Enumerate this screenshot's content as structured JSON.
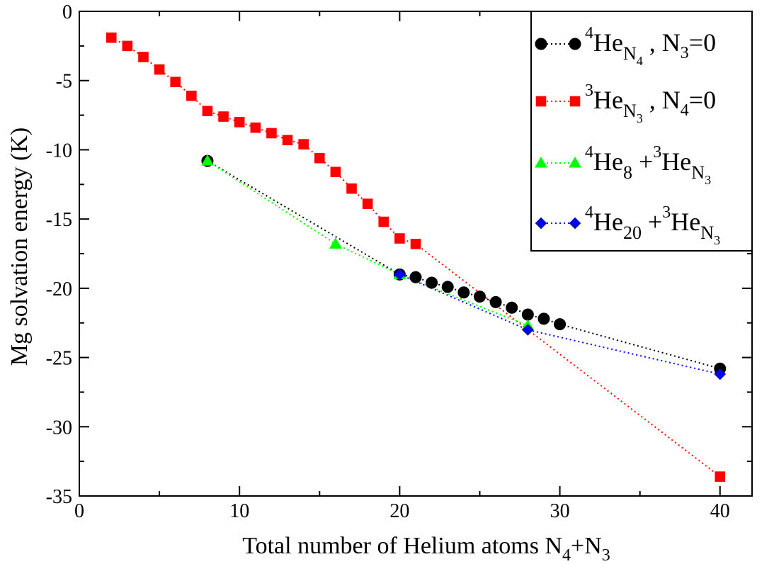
{
  "chart_data": {
    "type": "scatter",
    "title": "",
    "xlabel": {
      "main": "Total number of Helium atoms N",
      "sub1": "4",
      "plus": "+N",
      "sub2": "3"
    },
    "ylabel": "Mg solvation energy (K)",
    "xlim": [
      0,
      42
    ],
    "ylim": [
      -35,
      0
    ],
    "x_ticks": [
      0,
      10,
      20,
      30,
      40
    ],
    "y_ticks": [
      0,
      -5,
      -10,
      -15,
      -20,
      -25,
      -30,
      -35
    ],
    "grid": false,
    "legend_position": "top-right",
    "series": [
      {
        "legend": {
          "sup": "4",
          "base": "He",
          "sub": "N",
          "subsub": "4",
          "rest": ", N",
          "rest_sub": "3",
          "rest_tail": "=0"
        },
        "color": "#000000",
        "marker": "circle",
        "x": [
          8,
          20,
          21,
          22,
          23,
          24,
          25,
          26,
          27,
          28,
          29,
          30,
          40
        ],
        "y": [
          -10.8,
          -19.0,
          -19.2,
          -19.6,
          -19.9,
          -20.3,
          -20.6,
          -21.0,
          -21.4,
          -21.9,
          -22.2,
          -22.6,
          -25.8
        ]
      },
      {
        "legend": {
          "sup": "3",
          "base": "He",
          "sub": "N",
          "subsub": "3",
          "rest": ", N",
          "rest_sub": "4",
          "rest_tail": "=0"
        },
        "color": "#ff0000",
        "marker": "square",
        "x": [
          2,
          3,
          4,
          5,
          6,
          7,
          8,
          9,
          10,
          11,
          12,
          13,
          14,
          15,
          16,
          17,
          18,
          19,
          20,
          21,
          40
        ],
        "y": [
          -1.9,
          -2.5,
          -3.3,
          -4.2,
          -5.1,
          -6.1,
          -7.2,
          -7.6,
          -8.0,
          -8.4,
          -8.8,
          -9.3,
          -9.6,
          -10.6,
          -11.6,
          -12.8,
          -13.9,
          -15.2,
          -16.4,
          -16.8,
          -33.6
        ]
      },
      {
        "legend": {
          "sup": "4",
          "base": "He",
          "sub": "8",
          "subsub": "",
          "plus": "+",
          "sup2": "3",
          "base2": "He",
          "sub2": "N",
          "subsub2": "3"
        },
        "color": "#00ff00",
        "marker": "triangle",
        "x": [
          8,
          16,
          20,
          28
        ],
        "y": [
          -10.8,
          -16.8,
          -19.0,
          -22.7
        ]
      },
      {
        "legend": {
          "sup": "4",
          "base": "He",
          "sub": "20",
          "subsub": "",
          "plus": "+",
          "sup2": "3",
          "base2": "He",
          "sub2": "N",
          "subsub2": "3"
        },
        "color": "#0000ff",
        "marker": "diamond",
        "x": [
          20,
          28,
          40
        ],
        "y": [
          -19.0,
          -23.0,
          -26.2
        ]
      }
    ]
  }
}
